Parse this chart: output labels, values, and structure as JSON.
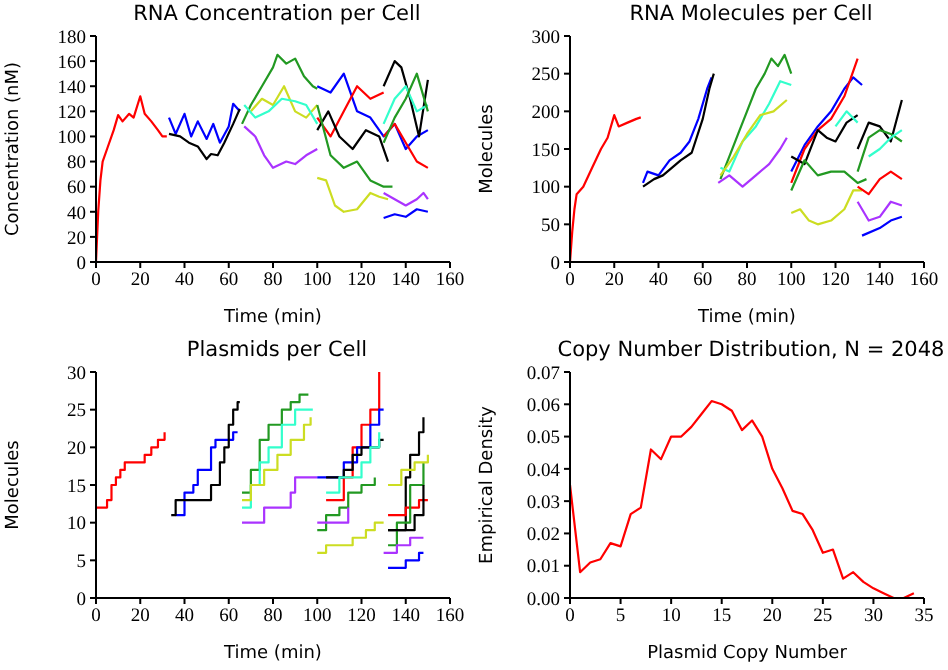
{
  "chart_data": [
    {
      "type": "line",
      "title": "RNA Concentration per Cell",
      "xlabel": "Time (min)",
      "ylabel": "Concentration (nM)",
      "xlim": [
        0,
        160
      ],
      "xticks": [
        0,
        20,
        40,
        60,
        80,
        100,
        120,
        140,
        160
      ],
      "ylim": [
        0,
        180
      ],
      "yticks": [
        0,
        20,
        40,
        60,
        80,
        100,
        120,
        140,
        160,
        180
      ],
      "marker": "none",
      "series": [
        {
          "color": "#ff0000",
          "x": [
            0,
            1,
            2,
            3,
            5,
            8,
            10,
            12,
            15,
            17,
            20,
            22,
            25,
            28,
            30,
            32
          ],
          "values": [
            0,
            40,
            65,
            80,
            90,
            105,
            117,
            112,
            118,
            115,
            132,
            118,
            112,
            105,
            100,
            100
          ]
        },
        {
          "color": "#0000ff",
          "x": [
            33,
            36,
            40,
            43,
            46,
            50,
            53,
            56,
            60,
            62,
            65
          ],
          "values": [
            115,
            102,
            118,
            100,
            112,
            98,
            110,
            95,
            108,
            126,
            120
          ]
        },
        {
          "color": "#000000",
          "x": [
            33,
            38,
            42,
            46,
            50,
            52,
            55,
            58,
            62,
            65
          ],
          "values": [
            102,
            100,
            95,
            92,
            82,
            86,
            85,
            95,
            110,
            122
          ]
        },
        {
          "color": "#229922",
          "x": [
            66,
            70,
            75,
            80,
            82,
            86,
            90,
            94,
            98,
            100
          ],
          "values": [
            110,
            125,
            140,
            155,
            165,
            158,
            162,
            148,
            140,
            138
          ]
        },
        {
          "color": "#ccdd22",
          "x": [
            70,
            75,
            80,
            85,
            90,
            95,
            100
          ],
          "values": [
            120,
            130,
            125,
            140,
            120,
            115,
            125
          ]
        },
        {
          "color": "#33ffcc",
          "x": [
            67,
            72,
            78,
            84,
            90,
            95,
            100
          ],
          "values": [
            125,
            115,
            120,
            130,
            128,
            125,
            110
          ]
        },
        {
          "color": "#aa33ff",
          "x": [
            67,
            72,
            76,
            80,
            86,
            90,
            95,
            100
          ],
          "values": [
            108,
            100,
            85,
            75,
            80,
            78,
            85,
            90
          ]
        },
        {
          "color": "#0000ff",
          "x": [
            100,
            106,
            112,
            118,
            124,
            130,
            135,
            140,
            145,
            150
          ],
          "values": [
            140,
            135,
            150,
            120,
            115,
            100,
            110,
            90,
            100,
            105
          ]
        },
        {
          "color": "#ff0000",
          "x": [
            100,
            106,
            112,
            118,
            124,
            130
          ],
          "values": [
            115,
            100,
            120,
            140,
            130,
            135
          ]
        },
        {
          "color": "#000000",
          "x": [
            100,
            105,
            110,
            116,
            122,
            128,
            132
          ],
          "values": [
            105,
            120,
            100,
            90,
            105,
            100,
            80
          ]
        },
        {
          "color": "#229922",
          "x": [
            100,
            106,
            112,
            118,
            124,
            130,
            134
          ],
          "values": [
            125,
            85,
            75,
            80,
            65,
            60,
            60
          ]
        },
        {
          "color": "#ccdd22",
          "x": [
            100,
            104,
            108,
            112,
            118,
            124,
            128,
            132
          ],
          "values": [
            67,
            65,
            45,
            40,
            42,
            55,
            52,
            50
          ]
        },
        {
          "color": "#0000ff",
          "x": [
            130,
            135,
            140,
            145,
            150
          ],
          "values": [
            35,
            38,
            36,
            42,
            40
          ]
        },
        {
          "color": "#aa33ff",
          "x": [
            130,
            135,
            140,
            145,
            148,
            150
          ],
          "values": [
            55,
            50,
            45,
            50,
            55,
            50
          ]
        },
        {
          "color": "#000000",
          "x": [
            130,
            135,
            138,
            142,
            146,
            150
          ],
          "values": [
            140,
            160,
            155,
            130,
            100,
            145
          ]
        },
        {
          "color": "#ff0000",
          "x": [
            130,
            135,
            140,
            145,
            150
          ],
          "values": [
            100,
            110,
            95,
            80,
            75
          ]
        },
        {
          "color": "#33ffcc",
          "x": [
            130,
            135,
            140,
            145,
            150
          ],
          "values": [
            110,
            130,
            140,
            120,
            125
          ]
        },
        {
          "color": "#229922",
          "x": [
            130,
            135,
            140,
            145,
            150
          ],
          "values": [
            95,
            115,
            130,
            150,
            120
          ]
        }
      ]
    },
    {
      "type": "line",
      "title": "RNA Molecules per Cell",
      "xlabel": "Time (min)",
      "ylabel": "Molecules",
      "xlim": [
        0,
        160
      ],
      "xticks": [
        0,
        20,
        40,
        60,
        80,
        100,
        120,
        140,
        160
      ],
      "ylim": [
        0,
        300
      ],
      "yticks": [
        0,
        50,
        100,
        150,
        200,
        250,
        300
      ],
      "marker": "none",
      "series": [
        {
          "color": "#ff0000",
          "x": [
            0,
            1,
            2,
            3,
            6,
            10,
            14,
            17,
            20,
            22,
            26,
            30,
            32
          ],
          "values": [
            0,
            40,
            70,
            90,
            100,
            125,
            150,
            165,
            195,
            180,
            185,
            190,
            192
          ]
        },
        {
          "color": "#0000ff",
          "x": [
            33,
            35,
            40,
            45,
            50,
            54,
            58,
            62,
            64
          ],
          "values": [
            105,
            120,
            115,
            135,
            145,
            160,
            190,
            230,
            245
          ]
        },
        {
          "color": "#000000",
          "x": [
            33,
            38,
            42,
            46,
            50,
            55,
            60,
            63,
            65
          ],
          "values": [
            100,
            110,
            115,
            125,
            135,
            145,
            190,
            230,
            250
          ]
        },
        {
          "color": "#229922",
          "x": [
            68,
            72,
            76,
            80,
            84,
            88,
            91,
            94,
            97,
            100
          ],
          "values": [
            110,
            140,
            170,
            200,
            230,
            250,
            270,
            260,
            275,
            250
          ]
        },
        {
          "color": "#33ffcc",
          "x": [
            68,
            72,
            78,
            84,
            90,
            95,
            100
          ],
          "values": [
            125,
            120,
            160,
            180,
            210,
            240,
            235
          ]
        },
        {
          "color": "#ccdd22",
          "x": [
            68,
            74,
            80,
            86,
            92,
            98
          ],
          "values": [
            115,
            140,
            170,
            195,
            200,
            215
          ]
        },
        {
          "color": "#aa33ff",
          "x": [
            67,
            72,
            78,
            84,
            90,
            95,
            98
          ],
          "values": [
            105,
            115,
            100,
            115,
            130,
            150,
            165
          ]
        },
        {
          "color": "#0000ff",
          "x": [
            100,
            106,
            112,
            118,
            124,
            128,
            132
          ],
          "values": [
            120,
            155,
            180,
            200,
            230,
            245,
            235
          ]
        },
        {
          "color": "#ff0000",
          "x": [
            100,
            106,
            112,
            118,
            124,
            130
          ],
          "values": [
            105,
            150,
            175,
            190,
            220,
            270
          ]
        },
        {
          "color": "#000000",
          "x": [
            100,
            106,
            112,
            116,
            120,
            125,
            130
          ],
          "values": [
            140,
            130,
            175,
            165,
            160,
            185,
            195
          ]
        },
        {
          "color": "#229922",
          "x": [
            100,
            106,
            112,
            118,
            124,
            130,
            134
          ],
          "values": [
            95,
            135,
            115,
            120,
            120,
            105,
            110
          ]
        },
        {
          "color": "#ccdd22",
          "x": [
            100,
            104,
            108,
            112,
            118,
            124,
            128,
            132
          ],
          "values": [
            65,
            70,
            55,
            50,
            55,
            70,
            95,
            95
          ]
        },
        {
          "color": "#33ffcc",
          "x": [
            120,
            125,
            130
          ],
          "values": [
            180,
            200,
            185
          ]
        },
        {
          "color": "#000000",
          "x": [
            130,
            135,
            140,
            145,
            150
          ],
          "values": [
            150,
            185,
            180,
            160,
            215
          ]
        },
        {
          "color": "#0000ff",
          "x": [
            132,
            140,
            145,
            150
          ],
          "values": [
            35,
            45,
            55,
            60
          ]
        },
        {
          "color": "#aa33ff",
          "x": [
            130,
            135,
            140,
            145,
            150
          ],
          "values": [
            80,
            55,
            60,
            80,
            75
          ]
        },
        {
          "color": "#ff0000",
          "x": [
            130,
            135,
            140,
            145,
            150
          ],
          "values": [
            100,
            90,
            110,
            120,
            110
          ]
        },
        {
          "color": "#229922",
          "x": [
            130,
            135,
            140,
            145,
            150
          ],
          "values": [
            120,
            165,
            175,
            170,
            160
          ]
        },
        {
          "color": "#33ffcc",
          "x": [
            135,
            140,
            145,
            150
          ],
          "values": [
            140,
            150,
            165,
            175
          ]
        }
      ]
    },
    {
      "type": "step",
      "title": "Plasmids per Cell",
      "xlabel": "Time (min)",
      "ylabel": "Molecules",
      "xlim": [
        0,
        160
      ],
      "xticks": [
        0,
        20,
        40,
        60,
        80,
        100,
        120,
        140,
        160
      ],
      "ylim": [
        0,
        30
      ],
      "yticks": [
        0,
        5,
        10,
        15,
        20,
        25,
        30
      ],
      "marker": "none",
      "series": [
        {
          "color": "#ff0000",
          "x": [
            0,
            3,
            5,
            7,
            9,
            11,
            13,
            20,
            22,
            25,
            28,
            31
          ],
          "values": [
            12,
            12,
            13,
            15,
            16,
            17,
            18,
            18,
            19,
            20,
            21,
            22
          ]
        },
        {
          "color": "#0000ff",
          "x": [
            36,
            39,
            40,
            44,
            46,
            50,
            52,
            54,
            60,
            62,
            64
          ],
          "values": [
            11,
            11,
            14,
            15,
            17,
            17,
            20,
            21,
            21,
            22,
            22
          ]
        },
        {
          "color": "#000000",
          "x": [
            34,
            36,
            50,
            52,
            56,
            58,
            60,
            62,
            64,
            65
          ],
          "values": [
            11,
            13,
            13,
            15,
            18,
            20,
            23,
            25,
            26,
            26
          ]
        },
        {
          "color": "#229922",
          "x": [
            66,
            70,
            74,
            78,
            84,
            88,
            92,
            96
          ],
          "values": [
            14,
            17,
            21,
            23,
            25,
            26,
            27,
            27
          ]
        },
        {
          "color": "#33ffcc",
          "x": [
            66,
            70,
            74,
            78,
            84,
            90,
            98
          ],
          "values": [
            12,
            15,
            18,
            20,
            23,
            25,
            25
          ]
        },
        {
          "color": "#ccdd22",
          "x": [
            66,
            70,
            76,
            82,
            88,
            94,
            97
          ],
          "values": [
            13,
            15,
            17,
            19,
            21,
            23,
            24
          ]
        },
        {
          "color": "#aa33ff",
          "x": [
            66,
            72,
            76,
            84,
            88,
            90,
            100
          ],
          "values": [
            10,
            10,
            12,
            12,
            14,
            16,
            16
          ]
        },
        {
          "color": "#ff0000",
          "x": [
            104,
            110,
            112,
            116,
            120,
            124,
            128
          ],
          "values": [
            13,
            13,
            16,
            20,
            23,
            25,
            30
          ]
        },
        {
          "color": "#0000ff",
          "x": [
            100,
            108,
            112,
            118,
            124,
            128,
            130
          ],
          "values": [
            16,
            16,
            18,
            20,
            23,
            25,
            25
          ]
        },
        {
          "color": "#000000",
          "x": [
            104,
            110,
            112,
            116,
            120,
            128,
            130
          ],
          "values": [
            16,
            16,
            17,
            19,
            20,
            21,
            21
          ]
        },
        {
          "color": "#229922",
          "x": [
            100,
            104,
            110,
            114,
            120,
            126
          ],
          "values": [
            9,
            11,
            12,
            14,
            15,
            16
          ]
        },
        {
          "color": "#ccdd22",
          "x": [
            100,
            104,
            112,
            116,
            122,
            126,
            130
          ],
          "values": [
            6,
            7,
            7,
            8,
            9,
            10,
            10
          ]
        },
        {
          "color": "#33ffcc",
          "x": [
            104,
            110,
            116,
            120,
            124,
            128
          ],
          "values": [
            14,
            16,
            16,
            18,
            20,
            22
          ]
        },
        {
          "color": "#000000",
          "x": [
            132,
            140,
            142,
            146,
            148
          ],
          "values": [
            9,
            16,
            19,
            22,
            24
          ]
        },
        {
          "color": "#0000ff",
          "x": [
            132,
            140,
            146,
            148
          ],
          "values": [
            4,
            5,
            6,
            6
          ]
        },
        {
          "color": "#ff0000",
          "x": [
            132,
            140,
            146,
            150
          ],
          "values": [
            11,
            12,
            13,
            13
          ]
        },
        {
          "color": "#229922",
          "x": [
            132,
            136,
            142,
            148
          ],
          "values": [
            7,
            10,
            15,
            18
          ]
        },
        {
          "color": "#ccdd22",
          "x": [
            132,
            138,
            144,
            150
          ],
          "values": [
            15,
            17,
            18,
            19
          ]
        },
        {
          "color": "#000000",
          "x": [
            132,
            140,
            144,
            148
          ],
          "values": [
            9,
            9,
            11,
            15
          ]
        },
        {
          "color": "#aa33ff",
          "x": [
            100,
            108,
            114
          ],
          "values": [
            10,
            10,
            12
          ]
        },
        {
          "color": "#aa33ff",
          "x": [
            130,
            136,
            142,
            148
          ],
          "values": [
            6,
            7,
            8,
            8
          ]
        }
      ]
    },
    {
      "type": "line",
      "title": "Copy Number Distribution, N = 2048",
      "xlabel": "Plasmid Copy Number",
      "ylabel": "Empirical Density",
      "xlim": [
        0,
        35
      ],
      "xticks": [
        0,
        5,
        10,
        15,
        20,
        25,
        30,
        35
      ],
      "ylim": [
        0,
        0.07
      ],
      "yticks": [
        {
          "value": 0,
          "label": "0.00"
        },
        {
          "value": 0.01,
          "label": "0.01"
        },
        {
          "value": 0.02,
          "label": "0.02"
        },
        {
          "value": 0.03,
          "label": "0.03"
        },
        {
          "value": 0.04,
          "label": "0.04"
        },
        {
          "value": 0.05,
          "label": "0.05"
        },
        {
          "value": 0.06,
          "label": "0.06"
        },
        {
          "value": 0.07,
          "label": "0.07"
        }
      ],
      "marker": "none",
      "series": [
        {
          "color": "#ff0000",
          "x": [
            0,
            1,
            2,
            3,
            4,
            5,
            6,
            7,
            8,
            9,
            10,
            11,
            12,
            13,
            14,
            15,
            16,
            17,
            18,
            19,
            20,
            21,
            22,
            23,
            24,
            25,
            26,
            27,
            28,
            29,
            30,
            31,
            32,
            33,
            34
          ],
          "values": [
            0.035,
            0.008,
            0.011,
            0.012,
            0.017,
            0.016,
            0.026,
            0.028,
            0.046,
            0.043,
            0.05,
            0.05,
            0.053,
            0.057,
            0.061,
            0.06,
            0.058,
            0.052,
            0.055,
            0.05,
            0.04,
            0.034,
            0.027,
            0.026,
            0.021,
            0.014,
            0.015,
            0.006,
            0.008,
            0.005,
            0.003,
            0.0015,
            0,
            0,
            0.0015
          ]
        }
      ]
    }
  ]
}
